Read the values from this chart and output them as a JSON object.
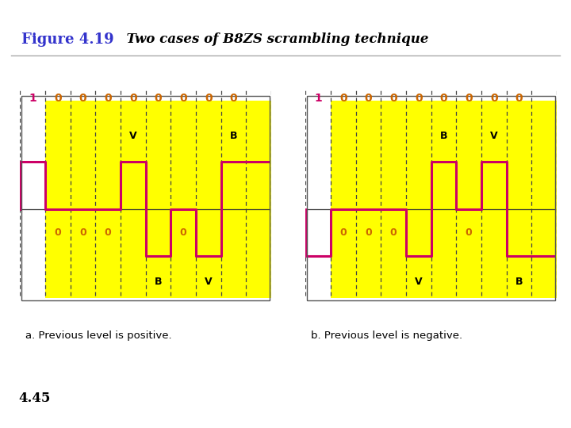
{
  "title_bold": "Figure 4.19",
  "title_italic": "  Two cases of B8ZS scrambling technique",
  "title_bold_color": "#3333cc",
  "bg_color": "#ffffff",
  "red_line_color": "#cc0000",
  "panel_bg": "#ffff00",
  "signal_color": "#cc0066",
  "zero_label_color": "#cc6600",
  "one_label_color": "#cc0066",
  "bv_label_color": "#000000",
  "caption_a": "a. Previous level is positive.",
  "caption_b": "b. Previous level is negative.",
  "footer_text": "4.45",
  "footer_color": "#000000",
  "divider_color": "#aaaaaa"
}
